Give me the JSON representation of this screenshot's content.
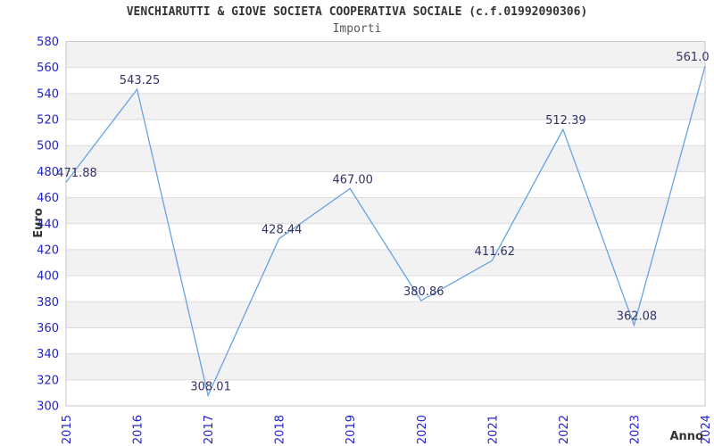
{
  "chart_data": {
    "type": "line",
    "title": "VENCHIARUTTI & GIOVE SOCIETA COOPERATIVA SOCIALE (c.f.01992090306)",
    "subtitle": "Importi",
    "xlabel": "Anno",
    "ylabel": "Euro",
    "categories": [
      "2015",
      "2016",
      "2017",
      "2018",
      "2019",
      "2020",
      "2021",
      "2022",
      "2023",
      "2024"
    ],
    "values": [
      471.88,
      543.25,
      308.01,
      428.44,
      467.0,
      380.86,
      411.62,
      512.39,
      362.08,
      561.0
    ],
    "point_labels": [
      "471.88",
      "543.25",
      "308.01",
      "428.44",
      "467.00",
      "380.86",
      "411.62",
      "512.39",
      "362.08",
      "561.0"
    ],
    "ylim": [
      300,
      580
    ],
    "ytick_step": 20,
    "grid": true,
    "legend": "none",
    "bands_alternating": true,
    "colors": {
      "line": "#67a3e2",
      "tick_label": "#2222cc",
      "data_label": "#333366",
      "band": "#f2f2f2",
      "grid": "#dcdcdc",
      "frame": "#c6c6c6",
      "title": "#333333",
      "subtitle": "#595959"
    }
  }
}
